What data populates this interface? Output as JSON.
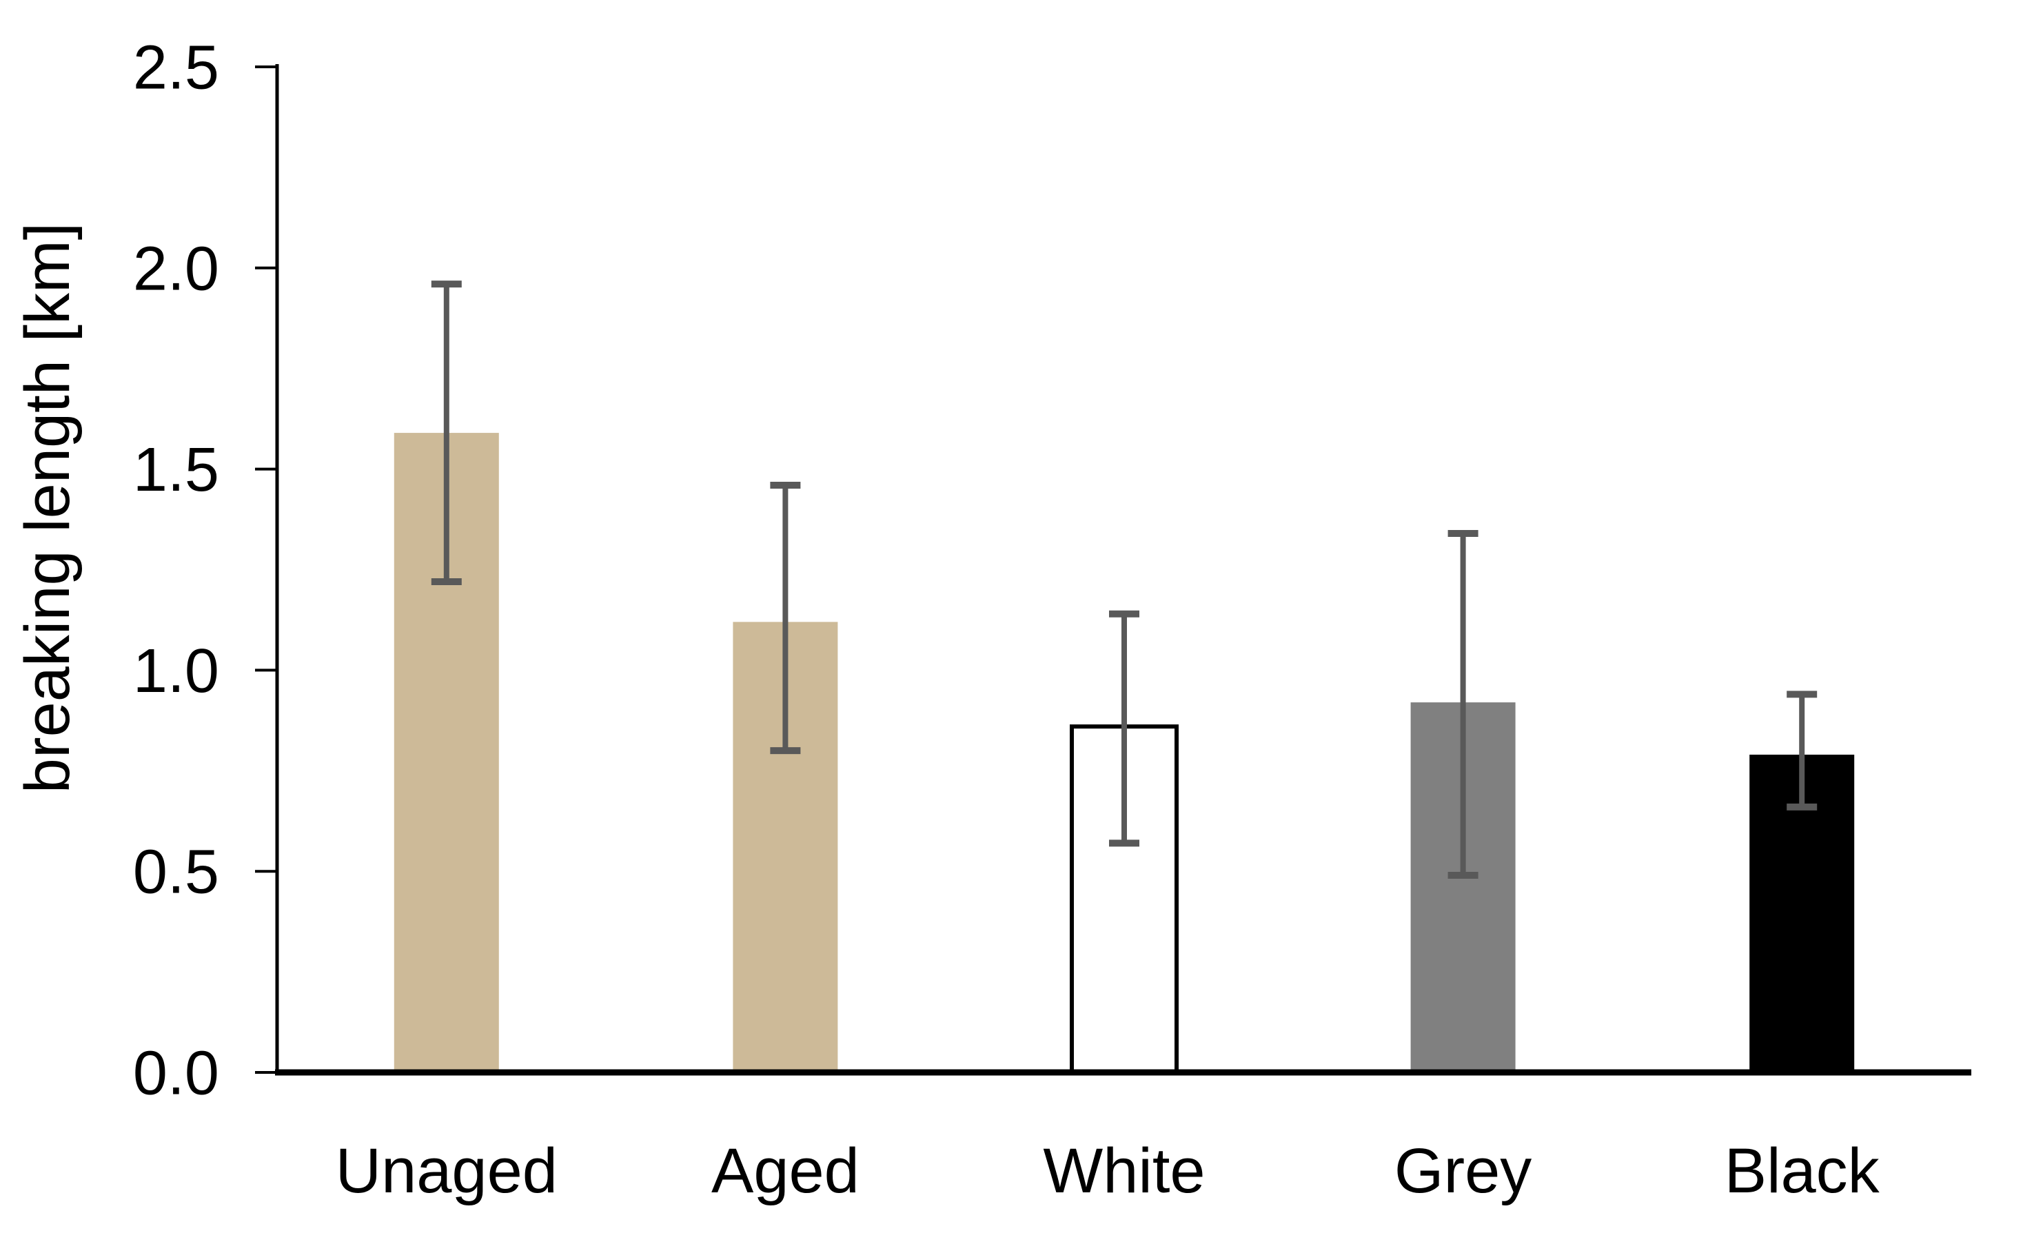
{
  "chart_data": {
    "type": "bar",
    "title": "",
    "xlabel": "",
    "ylabel": "breaking length [km]",
    "categories": [
      "Unaged",
      "Aged",
      "White",
      "Grey",
      "Black"
    ],
    "values": [
      1.59,
      1.12,
      0.86,
      0.92,
      0.79
    ],
    "error_low": [
      1.22,
      0.8,
      0.57,
      0.49,
      0.66
    ],
    "error_high": [
      1.96,
      1.46,
      1.14,
      1.34,
      0.94
    ],
    "ylim": [
      0,
      2.5
    ],
    "yticks": [
      0.0,
      0.5,
      1.0,
      1.5,
      2.0,
      2.5
    ],
    "ytick_labels": [
      "0.0",
      "0.5",
      "1.0",
      "1.5",
      "2.0",
      "2.5"
    ],
    "grid": false,
    "legend": null,
    "bar_fill_colors": [
      "#CDBA98",
      "#CDBA98",
      "#FFFFFF",
      "#808080",
      "#000000"
    ],
    "bar_border_colors": [
      "none",
      "none",
      "#000000",
      "none",
      "none"
    ],
    "error_bar_color": "#595959",
    "axis_color": "#000000",
    "text_color": "#000000",
    "background_color": "#FFFFFF"
  }
}
